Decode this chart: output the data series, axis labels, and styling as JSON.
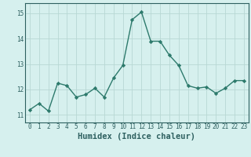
{
  "x": [
    0,
    1,
    2,
    3,
    4,
    5,
    6,
    7,
    8,
    9,
    10,
    11,
    12,
    13,
    14,
    15,
    16,
    17,
    18,
    19,
    20,
    21,
    22,
    23
  ],
  "y": [
    11.2,
    11.45,
    11.15,
    12.25,
    12.15,
    11.7,
    11.8,
    12.05,
    11.7,
    12.45,
    12.95,
    14.75,
    15.05,
    13.9,
    13.9,
    13.35,
    12.95,
    12.15,
    12.05,
    12.1,
    11.85,
    12.05,
    12.35,
    12.35
  ],
  "line_color": "#2d7a6c",
  "marker": "D",
  "marker_size": 2.2,
  "bg_color": "#d6f0ee",
  "grid_color": "#b8d8d4",
  "xlabel": "Humidex (Indice chaleur)",
  "ylim": [
    10.7,
    15.4
  ],
  "xlim": [
    -0.5,
    23.5
  ],
  "yticks": [
    11,
    12,
    13,
    14,
    15
  ],
  "xticks": [
    0,
    1,
    2,
    3,
    4,
    5,
    6,
    7,
    8,
    9,
    10,
    11,
    12,
    13,
    14,
    15,
    16,
    17,
    18,
    19,
    20,
    21,
    22,
    23
  ],
  "linewidth": 1.0,
  "font_color": "#2e6060",
  "tick_fontsize": 5.5,
  "label_fontsize": 7.5
}
